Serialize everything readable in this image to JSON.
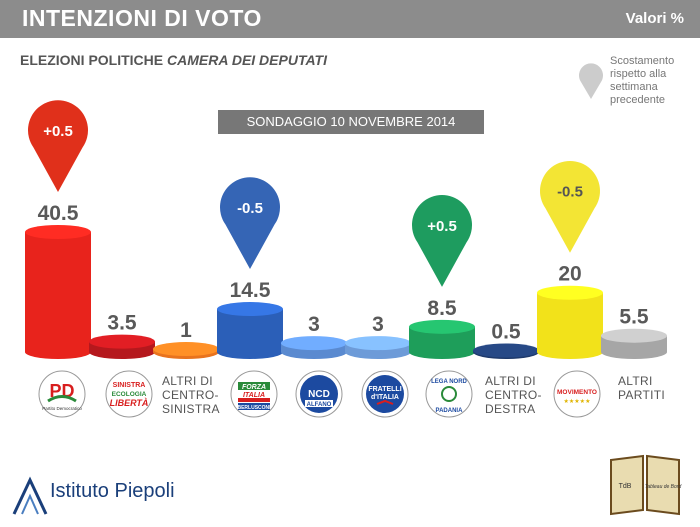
{
  "header": {
    "title": "INTENZIONI DI VOTO",
    "units": "Valori %"
  },
  "subtitle": {
    "normal": "ELEZIONI POLITICHE ",
    "italic": "CAMERA DEI DEPUTATI"
  },
  "survey_label": "SONDAGGIO 10 NOVEMBRE 2014",
  "legend": {
    "text": "Scostamento rispetto alla settimana precedente"
  },
  "logos": {
    "pd": "PD",
    "pd_sub": "Partito Democratico",
    "sel": [
      "SINISTRA",
      "ECOLOGIA",
      "LIBERTÀ"
    ],
    "fi": [
      "FORZA",
      "ITALIA",
      "BERLUSCONI"
    ],
    "ncd": [
      "NCD",
      "ALFANO"
    ],
    "fdi": [
      "FRATELLI",
      "d'ITALIA"
    ],
    "lega": [
      "LEGA NORD",
      "PADANIA"
    ],
    "m5s": [
      "MOVIMENTO",
      "★★★★★"
    ]
  },
  "altri_labels": {
    "cs": [
      "ALTRI DI",
      "CENTRO-",
      "SINISTRA"
    ],
    "cd": [
      "ALTRI DI",
      "CENTRO-",
      "DESTRA"
    ],
    "ap": [
      "ALTRI",
      "PARTITI"
    ]
  },
  "brand": {
    "name": "Istituto Piepoli",
    "tdb": "TdB",
    "tdb_side": "Tableau de Bord"
  },
  "chart_data": {
    "type": "bar",
    "categories": [
      "PD",
      "SEL",
      "ALTRI DI CENTRO-SINISTRA",
      "FORZA ITALIA",
      "NCD",
      "FRATELLI D'ITALIA",
      "LEGA NORD",
      "ALTRI DI CENTRO-DESTRA",
      "MOVIMENTO 5 STELLE",
      "ALTRI PARTITI"
    ],
    "values": [
      40.5,
      3.5,
      1,
      14.5,
      3,
      3,
      8.5,
      0.5,
      20,
      5.5
    ],
    "value_labels": [
      "40.5",
      "3.5",
      "1",
      "14.5",
      "3",
      "3",
      "8.5",
      "0.5",
      "20",
      "5.5"
    ],
    "colors": [
      "#e8231c",
      "#b5181d",
      "#e8731e",
      "#2b5fb8",
      "#5a8ad0",
      "#6d9bd8",
      "#1e9e5a",
      "#1f3a6b",
      "#f2e21a",
      "#a6a6a6"
    ],
    "changes": [
      {
        "index": 0,
        "label": "+0.5",
        "color": "#e0301b"
      },
      {
        "index": 3,
        "label": "-0.5",
        "color": "#3565b5"
      },
      {
        "index": 6,
        "label": "+0.5",
        "color": "#1e9c5f"
      },
      {
        "index": 8,
        "label": "-0.5",
        "color": "#f3e534"
      }
    ],
    "ylim": [
      0,
      40.5
    ]
  }
}
